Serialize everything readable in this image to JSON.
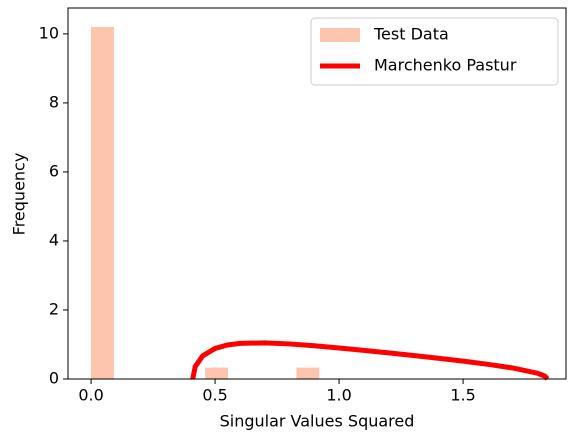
{
  "chart_data": {
    "type": "histogram",
    "xlabel": "Singular Values Squared",
    "ylabel": "Frequency",
    "xlim": [
      -0.093,
      1.915
    ],
    "ylim": [
      0,
      10.75
    ],
    "xticks": [
      {
        "value": 0,
        "label": "0.0"
      },
      {
        "value": 0.5,
        "label": "0.5"
      },
      {
        "value": 1,
        "label": "1.0"
      },
      {
        "value": 1.5,
        "label": "1.5"
      }
    ],
    "yticks": [
      0,
      2,
      4,
      6,
      8,
      10
    ],
    "legend": "upper right",
    "series": [
      {
        "name": "Test Data",
        "type": "histogram",
        "color": "#fdc5ad",
        "bins": [
          0,
          0.092,
          0.184,
          0.276,
          0.368,
          0.46,
          0.552,
          0.644,
          0.736,
          0.828,
          0.92,
          1.012,
          1.104,
          1.196,
          1.288,
          1.38,
          1.472,
          1.564,
          1.656,
          1.748,
          1.84
        ],
        "values": [
          10.2,
          0,
          0,
          0,
          0,
          0.33,
          0,
          0,
          0,
          0.33,
          0,
          0,
          0,
          0,
          0,
          0,
          0,
          0,
          0,
          0
        ]
      },
      {
        "name": "Marchenko Pastur",
        "type": "line",
        "color": "#ff0000",
        "x": [
          0.41,
          0.42,
          0.45,
          0.5,
          0.55,
          0.6,
          0.7,
          0.8,
          0.9,
          1.0,
          1.1,
          1.2,
          1.3,
          1.4,
          1.5,
          1.6,
          1.7,
          1.8,
          1.83,
          1.84
        ],
        "values": [
          0,
          0.362,
          0.669,
          0.886,
          0.986,
          1.032,
          1.048,
          1.016,
          0.962,
          0.898,
          0.829,
          0.756,
          0.68,
          0.602,
          0.518,
          0.426,
          0.319,
          0.167,
          0.083,
          0
        ]
      }
    ]
  }
}
